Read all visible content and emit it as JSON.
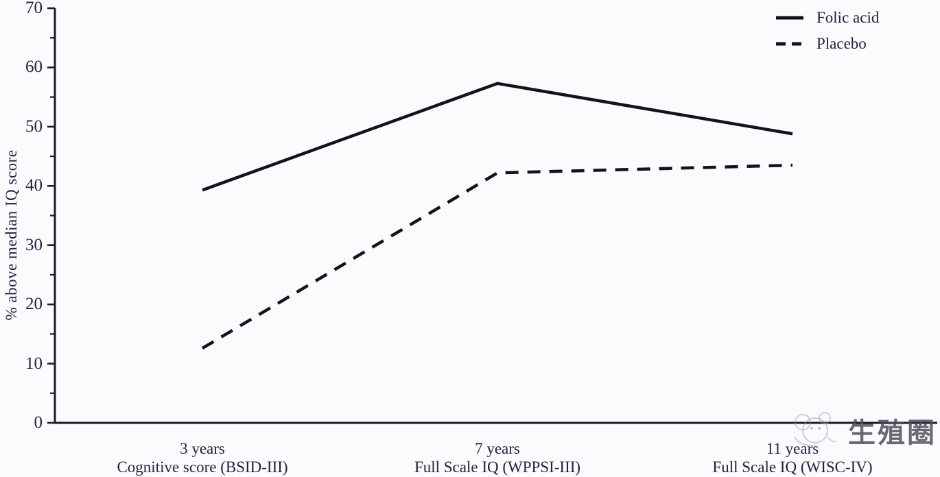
{
  "chart_data": {
    "type": "line",
    "title": "",
    "xlabel": "",
    "ylabel": "% above median IQ score",
    "ylim": [
      0,
      70
    ],
    "yticks": [
      0,
      10,
      20,
      30,
      40,
      50,
      60,
      70
    ],
    "yminorticks": [
      5,
      15,
      25,
      35,
      45,
      55,
      65
    ],
    "grid": false,
    "legend_position": "top-right",
    "categories": [
      {
        "line1": "3 years",
        "line2": "Cognitive score (BSID-III)"
      },
      {
        "line1": "7 years",
        "line2": "Full Scale IQ (WPPSI-III)"
      },
      {
        "line1": "11 years",
        "line2": "Full Scale IQ (WISC-IV)"
      }
    ],
    "series": [
      {
        "name": "Folic acid",
        "style": "solid",
        "values": [
          39.3,
          57.3,
          48.8
        ]
      },
      {
        "name": "Placebo",
        "style": "dashed",
        "values": [
          12.6,
          42.2,
          43.5
        ]
      }
    ],
    "line_color": "#141418",
    "axis_color": "#1c1c28",
    "text_color": "#21213b",
    "background_color": "#fbfbfd"
  },
  "watermark": {
    "text": "生殖圈"
  }
}
